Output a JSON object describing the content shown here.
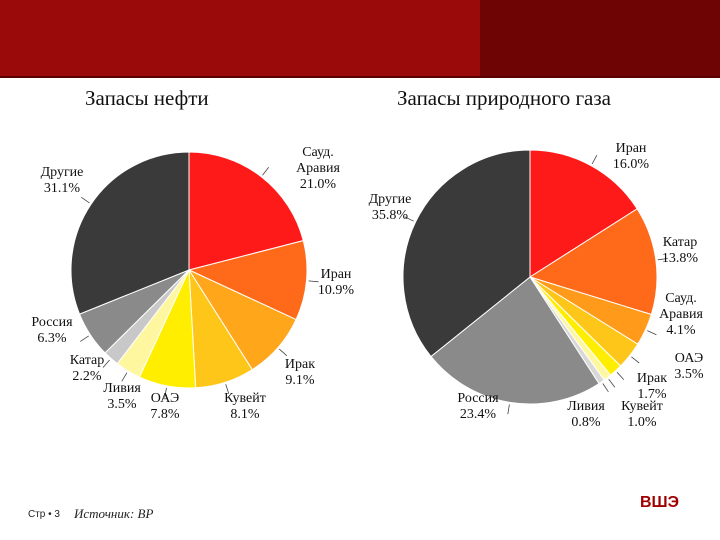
{
  "footer": {
    "page": "Стр • 3",
    "source": "Источник: BP",
    "logo": "ВШЭ"
  },
  "colors": {
    "header": "#9b0a0a",
    "header_dark": "#6e0404"
  },
  "chart_data": [
    {
      "type": "pie",
      "title": "Запасы нефти",
      "unit": "%",
      "slices": [
        {
          "label": [
            "Сауд.",
            "Аравия"
          ],
          "value": 21.0,
          "value_text": "21.0%",
          "color": "#ff1a1a"
        },
        {
          "label": [
            "Иран"
          ],
          "value": 10.9,
          "value_text": "10.9%",
          "color": "#ff6a1a"
        },
        {
          "label": [
            "Ирак"
          ],
          "value": 9.1,
          "value_text": "9.1%",
          "color": "#ffa61a"
        },
        {
          "label": [
            "Кувейт"
          ],
          "value": 8.1,
          "value_text": "8.1%",
          "color": "#ffc61a"
        },
        {
          "label": [
            "ОАЭ"
          ],
          "value": 7.8,
          "value_text": "7.8%",
          "color": "#ffee00"
        },
        {
          "label": [
            "Ливия"
          ],
          "value": 3.5,
          "value_text": "3.5%",
          "color": "#fff7a0"
        },
        {
          "label": [
            "Катар"
          ],
          "value": 2.2,
          "value_text": "2.2%",
          "color": "#c8c8c8"
        },
        {
          "label": [
            "Россия"
          ],
          "value": 6.3,
          "value_text": "6.3%",
          "color": "#8a8a8a"
        },
        {
          "label": [
            "Другие"
          ],
          "value": 31.1,
          "value_text": "31.1%",
          "color": "#3a3a3a"
        }
      ]
    },
    {
      "type": "pie",
      "title": "Запасы природного газа",
      "unit": "%",
      "slices": [
        {
          "label": [
            "Иран"
          ],
          "value": 16.0,
          "value_text": "16.0%",
          "color": "#ff1a1a"
        },
        {
          "label": [
            "Катар"
          ],
          "value": 13.8,
          "value_text": "13.8%",
          "color": "#ff6a1a"
        },
        {
          "label": [
            "Сауд.",
            "Аравия"
          ],
          "value": 4.1,
          "value_text": "4.1%",
          "color": "#ff9a1a"
        },
        {
          "label": [
            "ОАЭ"
          ],
          "value": 3.5,
          "value_text": "3.5%",
          "color": "#ffc61a"
        },
        {
          "label": [
            "Ирак"
          ],
          "value": 1.7,
          "value_text": "1.7%",
          "color": "#ffee00"
        },
        {
          "label": [
            "Кувейт"
          ],
          "value": 1.0,
          "value_text": "1.0%",
          "color": "#fff7a0"
        },
        {
          "label": [
            "Ливия"
          ],
          "value": 0.8,
          "value_text": "0.8%",
          "color": "#d8d8d8"
        },
        {
          "label": [
            "Россия"
          ],
          "value": 23.4,
          "value_text": "23.4%",
          "color": "#8a8a8a"
        },
        {
          "label": [
            "Другие"
          ],
          "value": 35.8,
          "value_text": "35.8%",
          "color": "#3a3a3a"
        }
      ]
    }
  ]
}
